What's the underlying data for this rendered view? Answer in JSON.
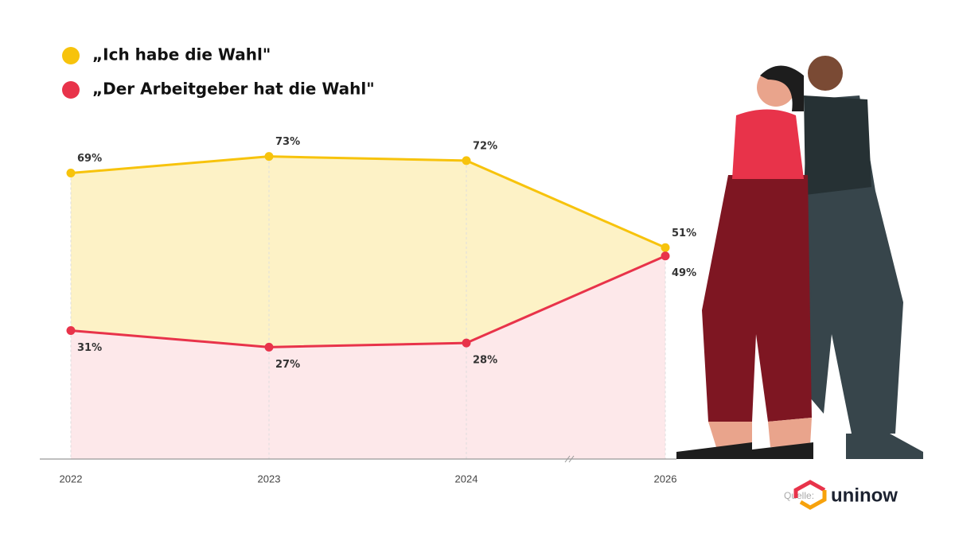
{
  "chart_data": {
    "type": "area-line",
    "categories": [
      "2022",
      "2023",
      "2024",
      "2026"
    ],
    "series": [
      {
        "name": "„Ich habe die Wahl\"",
        "color": "#f7c30c",
        "fill": "#fdf2c6",
        "values": [
          69,
          73,
          72,
          51
        ],
        "value_labels": [
          "69%",
          "73%",
          "72%",
          "51%"
        ]
      },
      {
        "name": "„Der Arbeitgeber hat die Wahl\"",
        "color": "#e8334a",
        "fill": "#fde8ea",
        "values": [
          31,
          27,
          28,
          49
        ],
        "value_labels": [
          "31%",
          "27%",
          "28%",
          "49%"
        ]
      }
    ],
    "ylim": [
      0,
      100
    ],
    "source_label": "Quelle:",
    "source": "uninow"
  }
}
